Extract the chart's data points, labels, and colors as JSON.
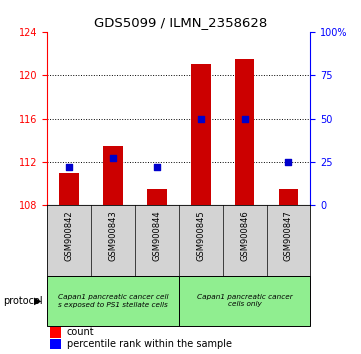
{
  "title": "GDS5099 / ILMN_2358628",
  "samples": [
    "GSM900842",
    "GSM900843",
    "GSM900844",
    "GSM900845",
    "GSM900846",
    "GSM900847"
  ],
  "count_values": [
    111.0,
    113.5,
    109.5,
    121.0,
    121.5,
    109.5
  ],
  "percentile_values": [
    22,
    27,
    22,
    50,
    50,
    25
  ],
  "ylim_left": [
    108,
    124
  ],
  "ylim_right": [
    0,
    100
  ],
  "yticks_left": [
    108,
    112,
    116,
    120,
    124
  ],
  "yticks_right": [
    0,
    25,
    50,
    75,
    100
  ],
  "ytick_labels_right": [
    "0",
    "25",
    "50",
    "75",
    "100%"
  ],
  "bar_color": "#cc0000",
  "dot_color": "#0000cc",
  "bar_bottom": 108,
  "group1_label": "Capan1 pancreatic cancer cell\ns exposed to PS1 stellate cells",
  "group2_label": "Capan1 pancreatic cancer\ncells only",
  "group_bg_color": "#90ee90",
  "xticklabel_bg": "#d3d3d3",
  "protocol_label": "protocol",
  "legend_count_label": "count",
  "legend_pct_label": "percentile rank within the sample",
  "fig_bg": "#ffffff",
  "gridline_yticks": [
    112,
    116,
    120
  ]
}
